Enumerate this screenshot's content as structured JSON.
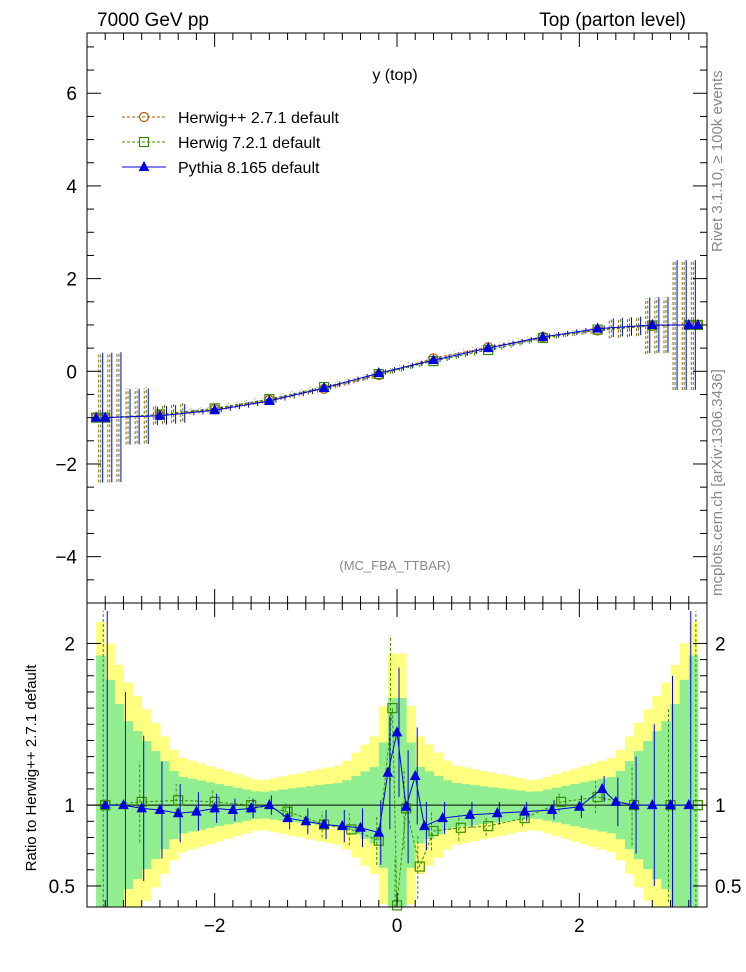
{
  "header": {
    "left": "7000 GeV pp",
    "right": "Top (parton level)"
  },
  "side_labels": {
    "rivet": "Rivet 3.1.10, ≥ 100k events",
    "mcplots": "mcplots.cern.ch [arXiv:1306.3436]"
  },
  "chart_data": [
    {
      "type": "line",
      "title": "y (top)",
      "watermark": "(MC_FBA_TTBAR)",
      "xlabel": "",
      "ylabel": "",
      "xlim": [
        -3.4,
        3.4
      ],
      "ylim": [
        -5.0,
        7.3
      ],
      "yticks": [
        -4,
        -2,
        0,
        2,
        4,
        6
      ],
      "yticklabels": [
        "−4",
        "−2",
        "0",
        "2",
        "4",
        "6"
      ],
      "legend_position": "top-left",
      "series": [
        {
          "name": "Herwig++ 2.7.1 default",
          "color": "#b25a00",
          "marker": "circle",
          "style": "dashed",
          "x": [
            -3.3,
            -3.2,
            -2.6,
            -2.0,
            -1.4,
            -0.8,
            -0.2,
            0.4,
            1.0,
            1.6,
            2.2,
            2.8,
            3.2,
            3.3
          ],
          "y": [
            -1.0,
            -1.0,
            -0.95,
            -0.82,
            -0.62,
            -0.38,
            -0.08,
            0.28,
            0.52,
            0.74,
            0.88,
            0.98,
            1.0,
            1.0
          ]
        },
        {
          "name": "Herwig 7.2.1 default",
          "color": "#3a8f00",
          "marker": "square",
          "style": "dashed",
          "x": [
            -3.3,
            -3.2,
            -2.6,
            -2.0,
            -1.4,
            -0.8,
            -0.2,
            0.4,
            1.0,
            1.6,
            2.2,
            2.8,
            3.2,
            3.3
          ],
          "y": [
            -1.0,
            -1.0,
            -0.93,
            -0.8,
            -0.6,
            -0.34,
            -0.06,
            0.22,
            0.46,
            0.72,
            0.9,
            0.99,
            1.0,
            1.0
          ]
        },
        {
          "name": "Pythia 8.165 default",
          "color": "#0000e0",
          "marker": "triangle",
          "style": "solid",
          "x": [
            -3.3,
            -3.2,
            -2.6,
            -2.0,
            -1.4,
            -0.8,
            -0.2,
            0.4,
            1.0,
            1.6,
            2.2,
            2.8,
            3.2,
            3.3
          ],
          "y": [
            -1.0,
            -1.0,
            -0.96,
            -0.84,
            -0.64,
            -0.36,
            -0.04,
            0.24,
            0.5,
            0.74,
            0.92,
            1.0,
            1.0,
            1.0
          ]
        }
      ]
    },
    {
      "type": "line",
      "title": "",
      "xlabel": "",
      "ylabel": "Ratio to Herwig++ 2.7.1 default",
      "xlim": [
        -3.4,
        3.4
      ],
      "ylim": [
        0.37,
        2.25
      ],
      "xticks": [
        -2,
        0,
        2
      ],
      "xticklabels": [
        "−2",
        "0",
        "2"
      ],
      "yticks": [
        0.5,
        1,
        2
      ],
      "yticklabels": [
        "0.5",
        "1",
        "2"
      ],
      "reference": 1.0,
      "bands": {
        "yellow_halfwidth": {
          "x": [
            -3.3,
            -3.0,
            -2.4,
            -1.5,
            -0.6,
            -0.2,
            0.0,
            0.2,
            0.6,
            1.5,
            2.4,
            3.0,
            3.3
          ],
          "y": [
            1.2,
            0.8,
            0.3,
            0.15,
            0.25,
            0.45,
            1.1,
            0.45,
            0.25,
            0.15,
            0.3,
            0.8,
            1.2
          ]
        },
        "green_halfwidth": {
          "x": [
            -3.3,
            -3.0,
            -2.4,
            -1.5,
            -0.6,
            -0.2,
            0.0,
            0.2,
            0.6,
            1.5,
            2.4,
            3.0,
            3.3
          ],
          "y": [
            1.0,
            0.55,
            0.18,
            0.08,
            0.14,
            0.25,
            0.8,
            0.25,
            0.14,
            0.08,
            0.18,
            0.55,
            1.0
          ]
        }
      },
      "series": [
        {
          "name": "Herwig 7.2.1 default",
          "color": "#3a8f00",
          "marker": "square",
          "style": "dashed",
          "x": [
            -3.2,
            -2.8,
            -2.4,
            -2.0,
            -1.6,
            -1.2,
            -0.8,
            -0.5,
            -0.2,
            -0.05,
            0.0,
            0.1,
            0.25,
            0.4,
            0.7,
            1.0,
            1.4,
            1.8,
            2.2,
            2.6,
            3.0,
            3.3
          ],
          "y": [
            1.0,
            1.02,
            1.03,
            1.02,
            1.0,
            0.96,
            0.88,
            0.85,
            0.78,
            1.6,
            0.38,
            0.98,
            0.62,
            0.84,
            0.86,
            0.87,
            0.92,
            1.02,
            1.05,
            1.0,
            1.0,
            1.0
          ],
          "err": [
            1.2,
            0.25,
            0.1,
            0.07,
            0.05,
            0.06,
            0.08,
            0.1,
            0.15,
            0.45,
            0.3,
            0.25,
            0.2,
            0.12,
            0.08,
            0.06,
            0.05,
            0.06,
            0.1,
            0.25,
            0.6,
            1.2
          ]
        },
        {
          "name": "Pythia 8.165 default",
          "color": "#0000e0",
          "marker": "triangle",
          "style": "solid",
          "x": [
            -3.2,
            -3.0,
            -2.8,
            -2.6,
            -2.4,
            -2.2,
            -2.0,
            -1.8,
            -1.6,
            -1.4,
            -1.2,
            -1.0,
            -0.8,
            -0.6,
            -0.4,
            -0.2,
            -0.1,
            0.0,
            0.1,
            0.2,
            0.3,
            0.5,
            0.8,
            1.1,
            1.4,
            1.7,
            2.0,
            2.25,
            2.4,
            2.6,
            2.8,
            3.0,
            3.2
          ],
          "y": [
            1.0,
            1.0,
            0.98,
            0.97,
            0.95,
            0.96,
            0.98,
            0.97,
            0.98,
            1.0,
            0.92,
            0.9,
            0.88,
            0.87,
            0.86,
            0.83,
            1.2,
            1.45,
            0.99,
            1.18,
            0.87,
            0.92,
            0.94,
            0.95,
            0.96,
            0.97,
            0.99,
            1.1,
            1.02,
            1.0,
            1.0,
            1.0,
            1.0
          ],
          "err": [
            1.2,
            0.7,
            0.45,
            0.3,
            0.18,
            0.12,
            0.09,
            0.07,
            0.06,
            0.06,
            0.07,
            0.08,
            0.09,
            0.1,
            0.12,
            0.2,
            0.35,
            0.4,
            0.35,
            0.3,
            0.15,
            0.1,
            0.08,
            0.07,
            0.06,
            0.06,
            0.07,
            0.08,
            0.15,
            0.3,
            0.5,
            0.8,
            1.2
          ]
        }
      ]
    }
  ]
}
